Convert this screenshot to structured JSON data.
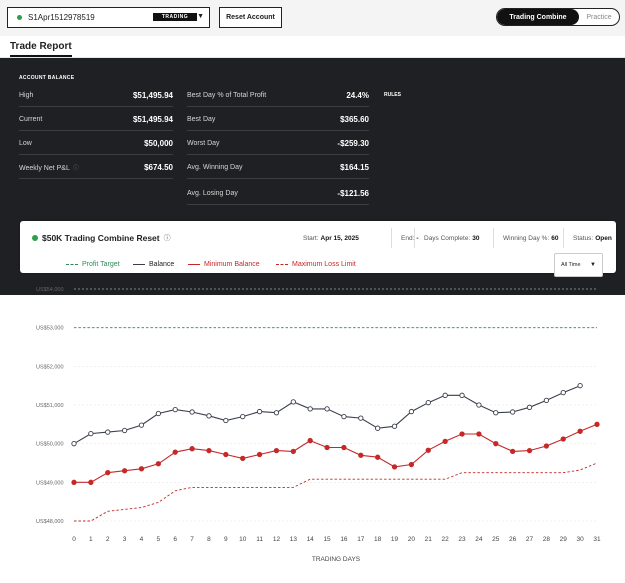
{
  "topbar": {
    "account_id": "S1Apr1512978519",
    "account_badge": "TRADING",
    "reset_label": "Reset Account",
    "mode_active": "Trading Combine",
    "mode_inactive": "Practice"
  },
  "tabs": {
    "active": "Trade Report"
  },
  "account_balance": {
    "title": "ACCOUNT BALANCE",
    "col1": [
      {
        "label": "High",
        "value": "$51,495.94"
      },
      {
        "label": "Current",
        "value": "$51,495.94"
      },
      {
        "label": "Low",
        "value": "$50,000"
      },
      {
        "label": "Weekly Net P&L",
        "value": "$674.50",
        "info": "ⓘ"
      }
    ],
    "col2": [
      {
        "label": "Best Day % of Total Profit",
        "value": "24.4%"
      },
      {
        "label": "Best Day",
        "value": "$365.60"
      },
      {
        "label": "Worst Day",
        "value": "-$259.30"
      },
      {
        "label": "Avg. Winning Day",
        "value": "$164.15"
      },
      {
        "label": "Avg. Losing Day",
        "value": "-$121.56"
      }
    ],
    "rules_label": "RULES"
  },
  "combine": {
    "title": "$50K Trading Combine Reset",
    "title_info": "ⓘ",
    "start_label": "Start:",
    "start_value": "Apr 15, 2025",
    "end_label": "End:",
    "end_value": "-",
    "days_label": "Days Complete:",
    "days_value": "30",
    "winning_label": "Winning Day %:",
    "winning_value": "60",
    "status_label": "Status:",
    "status_value": "Open",
    "range_select": "All Time"
  },
  "chart_data": {
    "type": "line",
    "xlabel": "TRADING DAYS",
    "ylabel": "",
    "x": [
      0,
      1,
      2,
      3,
      4,
      5,
      6,
      7,
      8,
      9,
      10,
      11,
      12,
      13,
      14,
      15,
      16,
      17,
      18,
      19,
      20,
      21,
      22,
      23,
      24,
      25,
      26,
      27,
      28,
      29,
      30,
      31
    ],
    "xlim": [
      0,
      31
    ],
    "ylim": [
      48000,
      54000
    ],
    "yticks": [
      {
        "value": 48000,
        "label": "US$48,000"
      },
      {
        "value": 49000,
        "label": "US$49,000"
      },
      {
        "value": 50000,
        "label": "US$50,000"
      },
      {
        "value": 51000,
        "label": "US$51,000"
      },
      {
        "value": 52000,
        "label": "US$52,000"
      },
      {
        "value": 53000,
        "label": "US$53,000"
      },
      {
        "value": 54000,
        "label": "US$54,000"
      }
    ],
    "grid": true,
    "legend_position": "top-left",
    "series": [
      {
        "name": "Profit Target",
        "color": "#2e8b57",
        "style": "dashed",
        "x": [
          0,
          31
        ],
        "values": [
          53000,
          53000
        ]
      },
      {
        "name": "Balance",
        "color": "#3a3f4b",
        "style": "solid",
        "markers": "hollow",
        "x": [
          0,
          1,
          2,
          3,
          4,
          5,
          6,
          7,
          8,
          9,
          10,
          11,
          12,
          13,
          14,
          15,
          16,
          17,
          18,
          19,
          20,
          21,
          22,
          23,
          24,
          25,
          26,
          27,
          28,
          29,
          30
        ],
        "values": [
          50000,
          50260,
          50300,
          50340,
          50480,
          50780,
          50880,
          50820,
          50720,
          50600,
          50700,
          50830,
          50800,
          51080,
          50900,
          50900,
          50700,
          50660,
          50400,
          50450,
          50830,
          51060,
          51250,
          51250,
          51000,
          50800,
          50820,
          50940,
          51120,
          51320,
          51500
        ]
      },
      {
        "name": "Minimum Balance",
        "color": "#c62828",
        "style": "solid",
        "markers": "filled",
        "x": [
          0,
          1,
          2,
          3,
          4,
          5,
          6,
          7,
          8,
          9,
          10,
          11,
          12,
          13,
          14,
          15,
          16,
          17,
          18,
          19,
          20,
          21,
          22,
          23,
          24,
          25,
          26,
          27,
          28,
          29,
          30,
          31
        ],
        "values": [
          49000,
          49000,
          49250,
          49300,
          49350,
          49480,
          49780,
          49870,
          49820,
          49720,
          49620,
          49720,
          49820,
          49800,
          50080,
          49900,
          49900,
          49700,
          49650,
          49400,
          49460,
          49830,
          50060,
          50250,
          50250,
          50000,
          49800,
          49820,
          49940,
          50120,
          50320,
          50500
        ]
      },
      {
        "name": "Maximum Loss Limit",
        "color": "#c62828",
        "style": "dashed",
        "x": [
          0,
          1,
          2,
          3,
          4,
          5,
          6,
          7,
          8,
          9,
          10,
          11,
          12,
          13,
          14,
          15,
          16,
          17,
          18,
          19,
          20,
          21,
          22,
          23,
          24,
          25,
          26,
          27,
          28,
          29,
          30,
          31
        ],
        "values": [
          48000,
          48000,
          48250,
          48300,
          48350,
          48480,
          48780,
          48870,
          48870,
          48870,
          48870,
          48870,
          48870,
          48870,
          49080,
          49080,
          49080,
          49080,
          49080,
          49080,
          49080,
          49080,
          49080,
          49250,
          49250,
          49250,
          49250,
          49250,
          49250,
          49250,
          49320,
          49500
        ]
      }
    ],
    "colors": {
      "profit_target": "#2e8b57",
      "balance": "#3a3f4b",
      "minimum_balance": "#c62828",
      "max_loss": "#c62828"
    }
  }
}
